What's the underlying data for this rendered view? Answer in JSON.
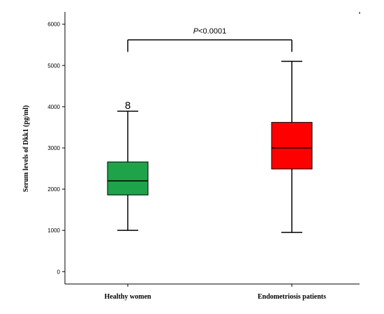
{
  "chart_data": {
    "type": "box",
    "ylabel": "Serum levels of Dkk1 (pg/ml)",
    "ylim": [
      -300,
      6300
    ],
    "yticks": [
      0,
      1000,
      2000,
      3000,
      4000,
      5000,
      6000
    ],
    "grid": false,
    "groups": [
      {
        "category": "Healthy women",
        "color": "#1fa34a",
        "min": 1000,
        "q1": 1860,
        "median": 2200,
        "q3": 2660,
        "max": 3890,
        "outliers": [
          {
            "label": "8",
            "value": 4030
          }
        ]
      },
      {
        "category": "Endometriosis patients",
        "color": "#ff0000",
        "min": 950,
        "q1": 2490,
        "median": 3000,
        "q3": 3620,
        "max": 5100,
        "outliers": []
      }
    ],
    "annotation": {
      "label_italic": "P",
      "label_rest": "<0.0001",
      "y": 5620,
      "bracket_drop_to": 5330
    }
  }
}
